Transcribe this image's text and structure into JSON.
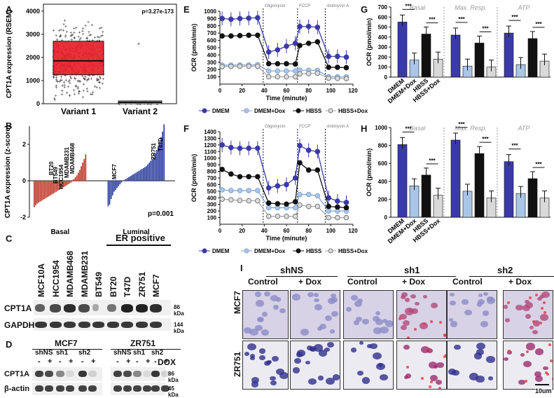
{
  "panel_labels": {
    "A": "A",
    "B": "B",
    "C": "C",
    "D": "D",
    "E": "E",
    "F": "F",
    "G": "G",
    "H": "H",
    "I": "I"
  },
  "panel_a": {
    "chart_data": {
      "type": "box",
      "title": "",
      "ylabel": "CPT1A expression (RSEM)",
      "categories": [
        "Variant 1",
        "Variant 2"
      ],
      "yticks": [
        "0",
        "1000",
        "2000",
        "3000",
        "4000"
      ],
      "ylim": [
        0,
        4300
      ],
      "boxes": [
        {
          "name": "Variant 1",
          "q1": 1250,
          "median": 1850,
          "q3": 2700,
          "min": 0,
          "max": 4300
        },
        {
          "name": "Variant 2",
          "q1": 0,
          "median": 60,
          "q3": 120,
          "min": 0,
          "max": 300
        }
      ],
      "pvalue": "p=3.27e-173"
    }
  },
  "panel_b": {
    "chart_data": {
      "type": "bar",
      "ylabel": "CPT1A expression (z-score)",
      "groups": [
        "Basal",
        "Luminal"
      ],
      "yticks": [
        "-2",
        "0",
        "2"
      ],
      "ylim": [
        -2,
        3
      ],
      "basal_values": [
        -1.45,
        -1.35,
        -1.25,
        -1.2,
        -1.15,
        -1.1,
        -1.05,
        -1.0,
        -0.95,
        -0.9,
        -0.85,
        -0.8,
        -0.75,
        -0.7,
        -0.65,
        -0.6,
        -0.55,
        -0.5,
        -0.45,
        -0.4,
        -0.35,
        -0.3,
        -0.25,
        -0.2,
        -0.15,
        -0.1,
        0.05,
        0.1,
        0.2,
        0.3,
        0.45,
        0.6,
        0.8,
        1.0,
        1.2,
        1.45
      ],
      "luminal_values": [
        -1.4,
        -1.3,
        -1.0,
        -0.8,
        -0.6,
        -0.5,
        -0.4,
        -0.3,
        -0.2,
        -0.1,
        0.0,
        0.05,
        0.1,
        0.15,
        0.2,
        0.25,
        0.3,
        0.35,
        0.4,
        0.45,
        0.5,
        0.55,
        0.6,
        0.65,
        0.7,
        0.75,
        0.8,
        0.9,
        1.0,
        1.1,
        1.2,
        1.3,
        1.5,
        1.7,
        1.9,
        2.1,
        2.4,
        2.7,
        3.1
      ],
      "labeled": [
        "BT20",
        "BT549",
        "HCC1954",
        "MDAMB231",
        "MDAMB468",
        "MCF7",
        "ZR751",
        "T47D"
      ],
      "pvalue": "p=0.001"
    }
  },
  "panel_c": {
    "samples": [
      "MCF10A",
      "HCC1954",
      "MDAMB468",
      "MDAMB231",
      "BT549",
      "BT20",
      "T47D",
      "ZR751",
      "MCF7"
    ],
    "group_label": "ER positive",
    "rows": [
      {
        "name": "CPT1A",
        "size": "86 kDa"
      },
      {
        "name": "GAPDH",
        "size": "144 kDa"
      }
    ]
  },
  "panel_d": {
    "cell_lines": [
      "MCF7",
      "ZR751"
    ],
    "shrna": [
      "shNS",
      "sh1",
      "sh2"
    ],
    "dox_signs": [
      "-",
      "+"
    ],
    "dox_label": "DOX",
    "rows": [
      {
        "name": "CPT1A",
        "size": "86 kDa"
      },
      {
        "name": "β-actin",
        "size": "45 kDa"
      }
    ]
  },
  "panel_e": {
    "chart_data": {
      "type": "line",
      "xlabel": "Time (minute)",
      "ylabel": "OCR (pmol/min)",
      "xlim": [
        0,
        120
      ],
      "ylim": [
        0,
        1000
      ],
      "xticks": [
        "0",
        "20",
        "40",
        "60",
        "80",
        "100",
        "120"
      ],
      "yticks": [
        "100",
        "200",
        "300",
        "400",
        "500",
        "600",
        "700",
        "800",
        "900",
        "1000"
      ],
      "injections": [
        {
          "name": "Oligomycin",
          "x": 39
        },
        {
          "name": "FCCP",
          "x": 70
        },
        {
          "name": "Antimycin A",
          "x": 95
        }
      ],
      "x": [
        2,
        10,
        18,
        26,
        34,
        44,
        52,
        60,
        68,
        72,
        80,
        88,
        98,
        106,
        114
      ],
      "series": [
        {
          "name": "DMEM",
          "values": [
            900,
            890,
            900,
            905,
            910,
            440,
            470,
            520,
            560,
            790,
            790,
            780,
            380,
            380,
            370
          ]
        },
        {
          "name": "DMEM+Dox",
          "values": [
            260,
            260,
            262,
            262,
            265,
            180,
            180,
            180,
            180,
            190,
            190,
            188,
            100,
            100,
            100
          ]
        },
        {
          "name": "HBSS",
          "values": [
            660,
            660,
            665,
            670,
            670,
            280,
            280,
            280,
            275,
            530,
            560,
            580,
            230,
            230,
            225
          ]
        },
        {
          "name": "HBSS+Dox",
          "values": [
            240,
            242,
            245,
            245,
            245,
            100,
            100,
            100,
            100,
            140,
            145,
            150,
            80,
            78,
            75
          ]
        }
      ]
    }
  },
  "panel_f": {
    "chart_data": {
      "type": "line",
      "xlabel": "Time (minute)",
      "ylabel": "OCR (pmol/min)",
      "xlim": [
        0,
        120
      ],
      "ylim": [
        0,
        1400
      ],
      "xticks": [
        "0",
        "20",
        "40",
        "60",
        "80",
        "100",
        "120"
      ],
      "yticks": [
        "100",
        "200",
        "300",
        "400",
        "500",
        "600",
        "700",
        "800",
        "900",
        "1000",
        "1100",
        "1200",
        "1300",
        "1400"
      ],
      "injections": [
        {
          "name": "Oligomycin",
          "x": 39
        },
        {
          "name": "FCCP",
          "x": 70
        },
        {
          "name": "Antimycin A",
          "x": 95
        }
      ],
      "x": [
        2,
        10,
        18,
        26,
        34,
        44,
        52,
        60,
        68,
        72,
        80,
        88,
        98,
        106,
        114
      ],
      "series": [
        {
          "name": "DMEM",
          "values": [
            1200,
            1160,
            1150,
            1150,
            1150,
            550,
            580,
            600,
            700,
            1190,
            1120,
            1100,
            400,
            350,
            330
          ]
        },
        {
          "name": "DMEM+Dox",
          "values": [
            520,
            510,
            510,
            510,
            510,
            250,
            250,
            250,
            250,
            450,
            450,
            430,
            200,
            200,
            200
          ]
        },
        {
          "name": "HBSS",
          "values": [
            830,
            760,
            720,
            720,
            720,
            320,
            310,
            305,
            340,
            930,
            820,
            820,
            270,
            260,
            250
          ]
        },
        {
          "name": "HBSS+Dox",
          "values": [
            380,
            370,
            360,
            355,
            355,
            120,
            120,
            120,
            120,
            290,
            270,
            270,
            100,
            100,
            100
          ]
        }
      ]
    }
  },
  "legend": {
    "DMEM": "DMEM",
    "DMEM_Dox": "DMEM+Dox",
    "HBSS": "HBSS",
    "HBSS_Dox": "HBSS+Dox"
  },
  "panel_g": {
    "chart_data": {
      "type": "bar",
      "ylabel": "OCR (pmol/min)",
      "ylim": [
        0,
        700
      ],
      "yticks": [
        "0",
        "100",
        "200",
        "300",
        "400",
        "500",
        "600",
        "700"
      ],
      "groups": [
        "Basal",
        "Max. Resp.",
        "ATP"
      ],
      "categories": [
        "DMEM",
        "DMEM+Dox",
        "HBSS",
        "HBSS+Dox"
      ],
      "series": [
        {
          "name": "Basal",
          "values": [
            550,
            170,
            430,
            180
          ]
        },
        {
          "name": "Max. Resp.",
          "values": [
            420,
            110,
            340,
            100
          ]
        },
        {
          "name": "ATP",
          "values": [
            440,
            125,
            385,
            160
          ]
        }
      ],
      "significance": "***"
    }
  },
  "panel_h": {
    "chart_data": {
      "type": "bar",
      "ylabel": "OCR (pmol/min)",
      "ylim": [
        0,
        1000
      ],
      "yticks": [
        "0",
        "200",
        "400",
        "600",
        "800",
        "1000"
      ],
      "groups": [
        "Basal",
        "Max. Resp.",
        "ATP"
      ],
      "categories": [
        "DMEM",
        "DMEM+Dox",
        "HBSS",
        "HBSS+Dox"
      ],
      "series": [
        {
          "name": "Basal",
          "values": [
            810,
            350,
            470,
            245
          ]
        },
        {
          "name": "Max. Resp.",
          "values": [
            860,
            290,
            710,
            215
          ]
        },
        {
          "name": "ATP",
          "values": [
            620,
            265,
            430,
            215
          ]
        }
      ],
      "significance": "***"
    }
  },
  "panel_i": {
    "groups": [
      "shNS",
      "sh1",
      "sh2"
    ],
    "conditions": [
      "Control",
      "+ Dox"
    ],
    "rows": [
      "MCF7",
      "ZR751"
    ],
    "scale_bar": "10um"
  },
  "colors": {
    "dmem": "#3a3aa8",
    "dmem_dox": "#a9c6e8",
    "hbss": "#111111",
    "hbss_dox": "#d9d9d9",
    "basal_red": "#c0392b",
    "luminal_blue": "#2c3e9e"
  }
}
